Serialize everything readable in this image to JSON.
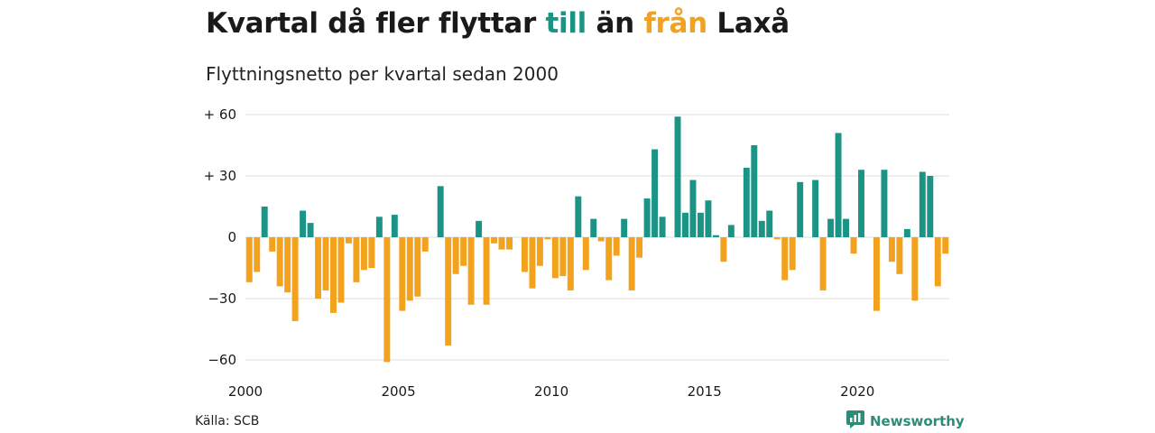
{
  "title": {
    "part1": "Kvartal då fler flyttar ",
    "till": "till",
    "part2": " än ",
    "fran": "från",
    "part3": " Laxå"
  },
  "subtitle": "Flyttningsnetto per kvartal sedan 2000",
  "source": "Källa: SCB",
  "brand": {
    "name": "Newsworthy",
    "icon": "newsworthy-logo-icon"
  },
  "colors": {
    "positive": "#1b9486",
    "negative": "#f3a21d",
    "grid": "#dddddd",
    "brand": "#2e8b78"
  },
  "chart_data": {
    "type": "bar",
    "ylim": [
      -63,
      63
    ],
    "y_ticks": [
      {
        "value": 60,
        "label": "+ 60"
      },
      {
        "value": 30,
        "label": "+ 30"
      },
      {
        "value": 0,
        "label": "0"
      },
      {
        "value": -30,
        "label": "−30"
      },
      {
        "value": -60,
        "label": "−60"
      }
    ],
    "x_ticks": [
      {
        "value": 2000,
        "label": "2000"
      },
      {
        "value": 2005,
        "label": "2005"
      },
      {
        "value": 2010,
        "label": "2010"
      },
      {
        "value": 2015,
        "label": "2015"
      },
      {
        "value": 2020,
        "label": "2020"
      }
    ],
    "x_start_year": 2000,
    "values": [
      -22,
      -17,
      15,
      -7,
      -24,
      -27,
      -41,
      13,
      7,
      -30,
      -26,
      -37,
      -32,
      -3,
      -22,
      -16,
      -15,
      10,
      -61,
      11,
      -36,
      -31,
      -29,
      -7,
      0,
      25,
      -53,
      -18,
      -14,
      -33,
      8,
      -33,
      -3,
      -6,
      -6,
      0,
      -17,
      -25,
      -14,
      -1,
      -20,
      -19,
      -26,
      20,
      -16,
      9,
      -2,
      -21,
      -9,
      9,
      -26,
      -10,
      19,
      43,
      10,
      0,
      59,
      12,
      28,
      12,
      18,
      1,
      -12,
      6,
      0,
      34,
      45,
      8,
      13,
      -1,
      -21,
      -16,
      27,
      0,
      28,
      -26,
      9,
      51,
      9,
      -8,
      33,
      0,
      -36,
      33,
      -12,
      -18,
      4,
      -31,
      32,
      30,
      -24,
      -8
    ]
  }
}
